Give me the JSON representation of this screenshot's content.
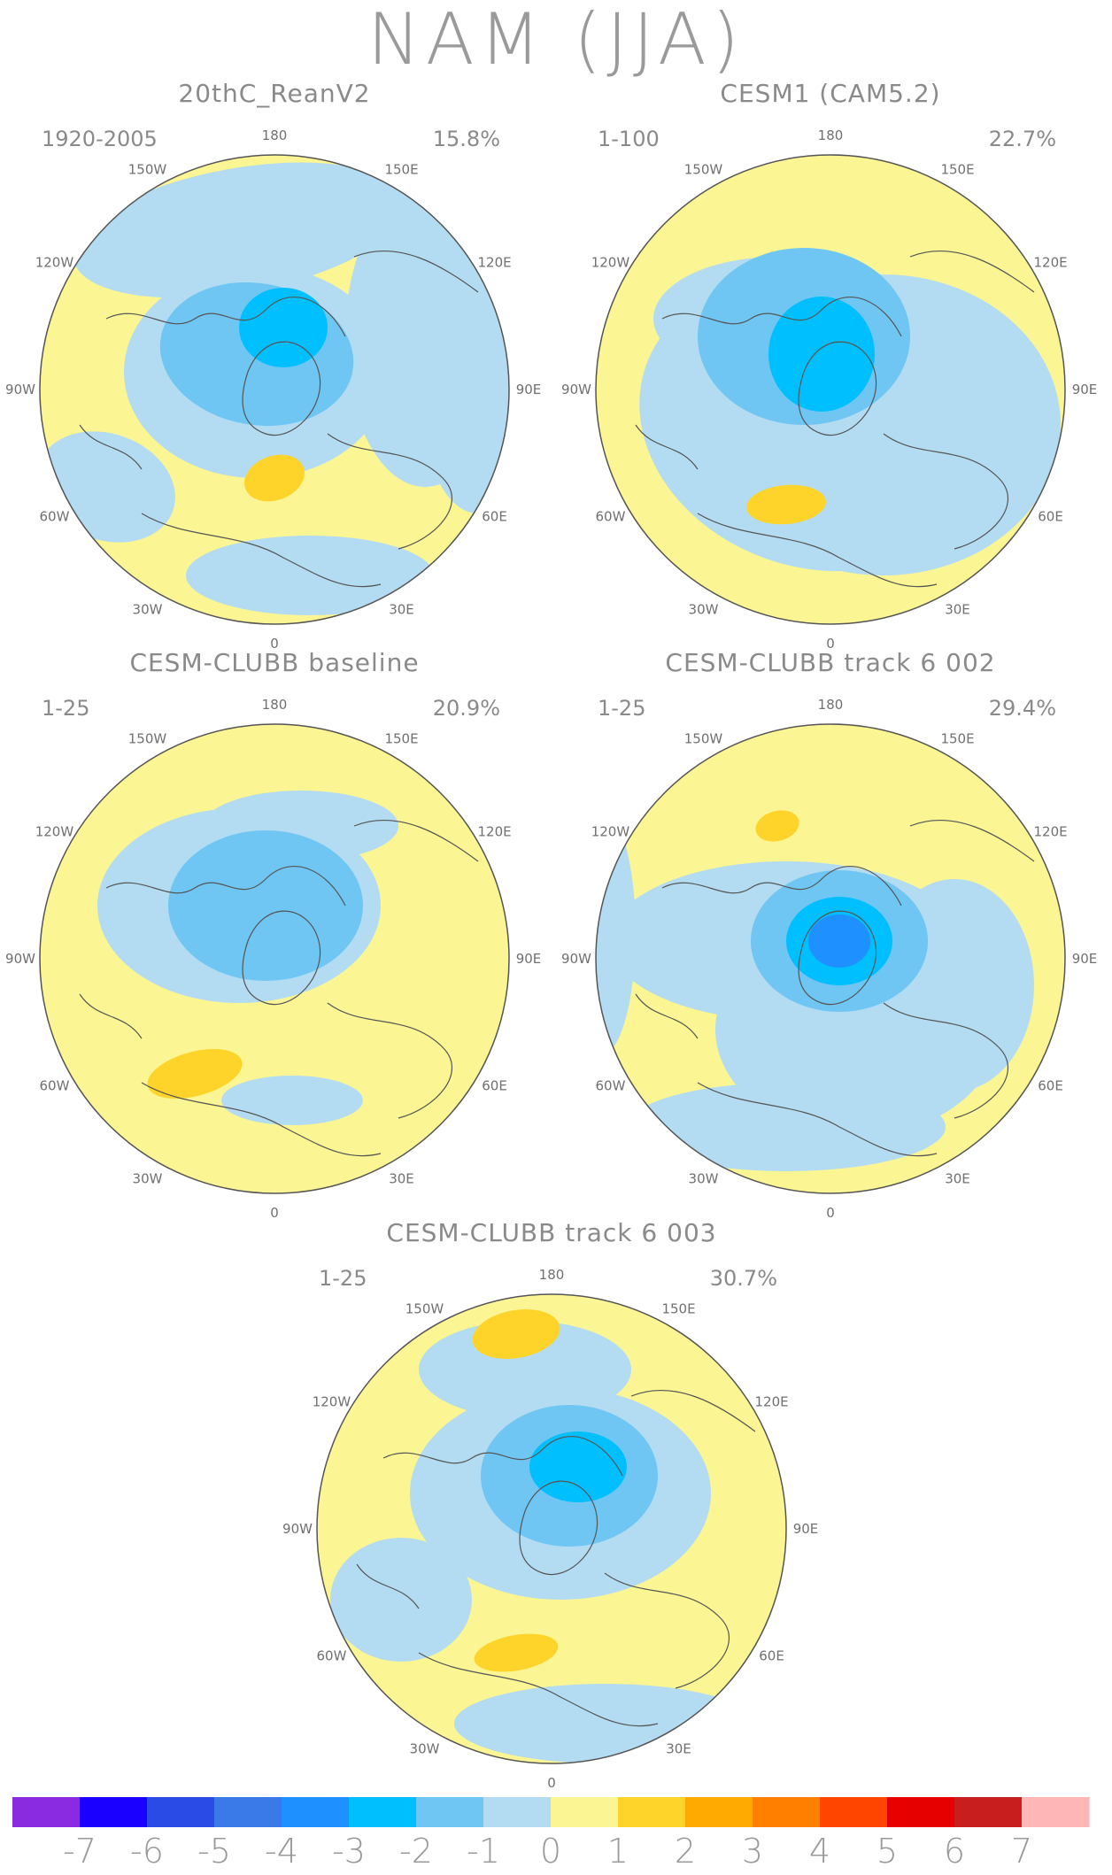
{
  "title": "NAM (JJA)",
  "panels": [
    {
      "title": "20thC_ReanV2",
      "period": "1920-2005",
      "variance": "15.8%"
    },
    {
      "title": "CESM1 (CAM5.2)",
      "period": "1-100",
      "variance": "22.7%"
    },
    {
      "title": "CESM-CLUBB baseline",
      "period": "1-25",
      "variance": "20.9%"
    },
    {
      "title": "CESM-CLUBB track 6 002",
      "period": "1-25",
      "variance": "29.4%"
    },
    {
      "title": "CESM-CLUBB track 6 003",
      "period": "1-25",
      "variance": "30.7%"
    }
  ],
  "longitude_labels": [
    "180",
    "150E",
    "120E",
    "90E",
    "60E",
    "30E",
    "0",
    "30W",
    "60W",
    "90W",
    "120W",
    "150W"
  ],
  "colorbar": {
    "ticks": [
      "-7",
      "-6",
      "-5",
      "-4",
      "-3",
      "-2",
      "-1",
      "0",
      "1",
      "2",
      "3",
      "4",
      "5",
      "6",
      "7"
    ],
    "colors": [
      "#8a2be2",
      "#1a00ff",
      "#2b4be6",
      "#3a7ae8",
      "#1e90ff",
      "#00bfff",
      "#70c6f2",
      "#b3dcf2",
      "#fbf593",
      "#ffd42a",
      "#ffaa00",
      "#ff7f00",
      "#ff4500",
      "#e60000",
      "#c81e1e",
      "#ffb6b6"
    ]
  }
}
